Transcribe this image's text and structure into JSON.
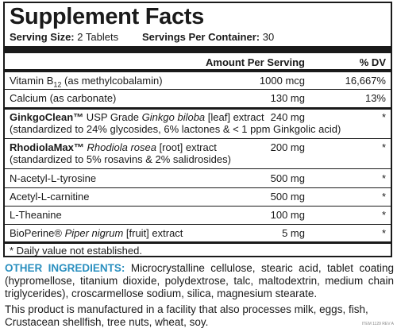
{
  "panel": {
    "title": "Supplement Facts",
    "serving_size_label": "Serving Size:",
    "serving_size_value": "2 Tablets",
    "servings_per_container_label": "Servings Per Container:",
    "servings_per_container_value": "30",
    "col_amount": "Amount Per Serving",
    "col_dv": "% DV",
    "rows": [
      {
        "pre": "",
        "name": "Vitamin B",
        "sub": "12",
        "desc": " (as methylcobalamin)",
        "desc2": "",
        "amount": "1000 mcg",
        "dv": "16,667%"
      },
      {
        "pre": "",
        "name": "Calcium (as carbonate)",
        "sub": "",
        "desc": "",
        "desc2": "",
        "amount": "130 mg",
        "dv": "13%"
      },
      {
        "pre": "GinkgoClean™",
        "name": "",
        "sub": "",
        "desc": " USP Grade ",
        "italic": "Ginkgo biloba",
        "desc_after": " [leaf] extract",
        "desc2": "(standardized to 24% glycosides, 6% lactones & < 1 ppm Ginkgolic acid)",
        "amount": "240 mg",
        "dv": "*"
      },
      {
        "pre": "RhodiolaMax™",
        "name": "",
        "sub": "",
        "desc": " ",
        "italic": "Rhodiola rosea",
        "desc_after": " [root] extract",
        "desc2": "(standardized to 5% rosavins & 2% salidrosides)",
        "amount": "200 mg",
        "dv": "*"
      },
      {
        "pre": "",
        "name": "N-acetyl-L-tyrosine",
        "sub": "",
        "desc": "",
        "desc2": "",
        "amount": "500 mg",
        "dv": "*"
      },
      {
        "pre": "",
        "name": "Acetyl-L-carnitine",
        "sub": "",
        "desc": "",
        "desc2": "",
        "amount": "500 mg",
        "dv": "*"
      },
      {
        "pre": "",
        "name": "L-Theanine",
        "sub": "",
        "desc": "",
        "desc2": "",
        "amount": "100 mg",
        "dv": "*"
      },
      {
        "pre": "",
        "name": "BioPerine®",
        "sub": "",
        "desc": " ",
        "italic": "Piper nigrum",
        "desc_after": " [fruit] extract",
        "desc2": "",
        "amount": "5 mg",
        "dv": "*"
      }
    ],
    "footnote": "* Daily value not established."
  },
  "other_ingredients": {
    "label": "OTHER INGREDIENTS:",
    "text": " Microcrystalline cellulose, stearic acid, tablet coating (hypromellose, titanium dioxide, polydextrose, talc, maltodextrin, medium chain triglycerides), croscarmellose sodium, silica, magnesium stearate."
  },
  "allergen_statement": "This product is manufactured in a facility that also processes milk, eggs, fish, Crustacean shellfish, tree nuts, wheat, soy.",
  "item_code": "ITEM 1129 REV A",
  "colors": {
    "label_blue": "#2a8fbf",
    "ink": "#1a1a1a"
  }
}
